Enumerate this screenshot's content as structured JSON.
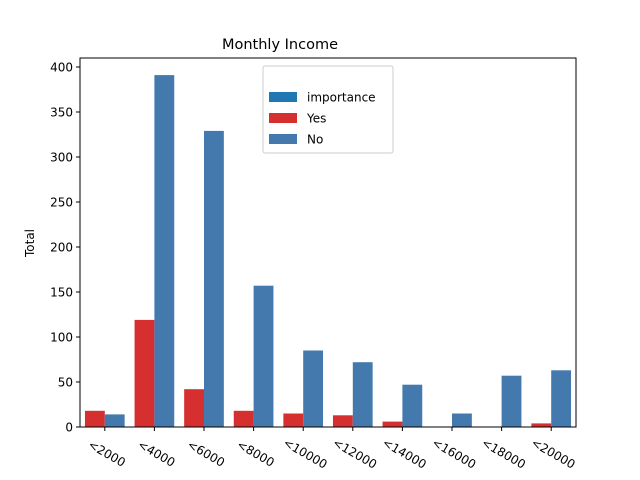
{
  "chart_data": {
    "type": "bar",
    "title": "Monthly Income",
    "xlabel": "",
    "ylabel": "Total",
    "ylim": [
      0,
      410
    ],
    "yticks": [
      0,
      50,
      100,
      150,
      200,
      250,
      300,
      350,
      400
    ],
    "grid": false,
    "legend_position": "top-center",
    "categories": [
      "<2000",
      "<4000",
      "<6000",
      "<8000",
      "<10000",
      "<12000",
      "<14000",
      "<16000",
      "<18000",
      "<20000"
    ],
    "legend": [
      {
        "name": "importance",
        "color": "#1f77b4"
      },
      {
        "name": "Yes",
        "color": "#d62f2f"
      },
      {
        "name": "No",
        "color": "#4379ad"
      }
    ],
    "series": [
      {
        "name": "Yes",
        "color": "#d62f2f",
        "values": [
          18,
          119,
          42,
          18,
          15,
          13,
          6,
          0,
          0,
          4
        ]
      },
      {
        "name": "No",
        "color": "#4379ad",
        "values": [
          14,
          391,
          329,
          157,
          85,
          72,
          47,
          15,
          57,
          63
        ]
      }
    ]
  }
}
